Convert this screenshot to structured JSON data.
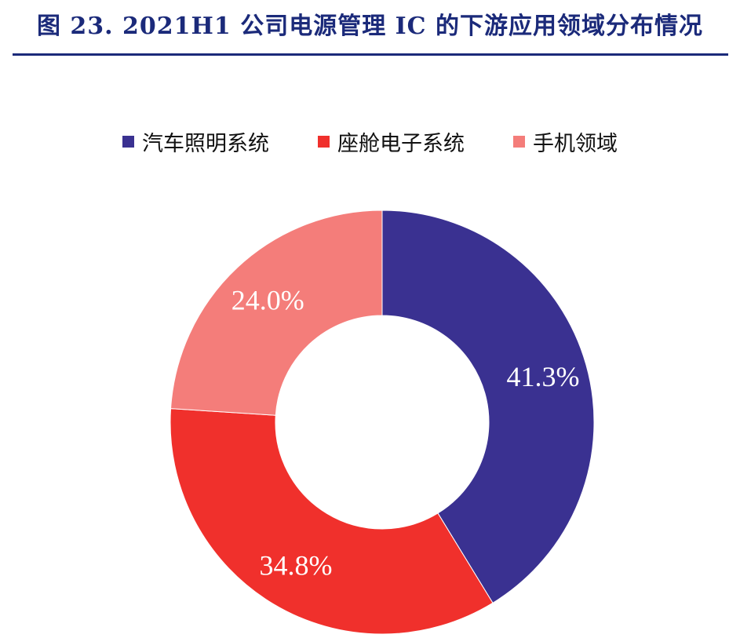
{
  "figure": {
    "title": "图 23. 2021H1 公司电源管理 IC 的下游应用领域分布情况"
  },
  "chart_data": {
    "type": "pie",
    "variant": "donut",
    "title": "",
    "categories": [
      "汽车照明系统",
      "座舱电子系统",
      "手机领域"
    ],
    "values": [
      41.3,
      34.8,
      24.0
    ],
    "unit": "%",
    "data_labels": [
      "41.3%",
      "34.8%",
      "24.0%"
    ],
    "colors": [
      "#3a3191",
      "#f0302c",
      "#f47d7a"
    ],
    "legend_position": "top",
    "start_angle": "12 o'clock, clockwise"
  }
}
